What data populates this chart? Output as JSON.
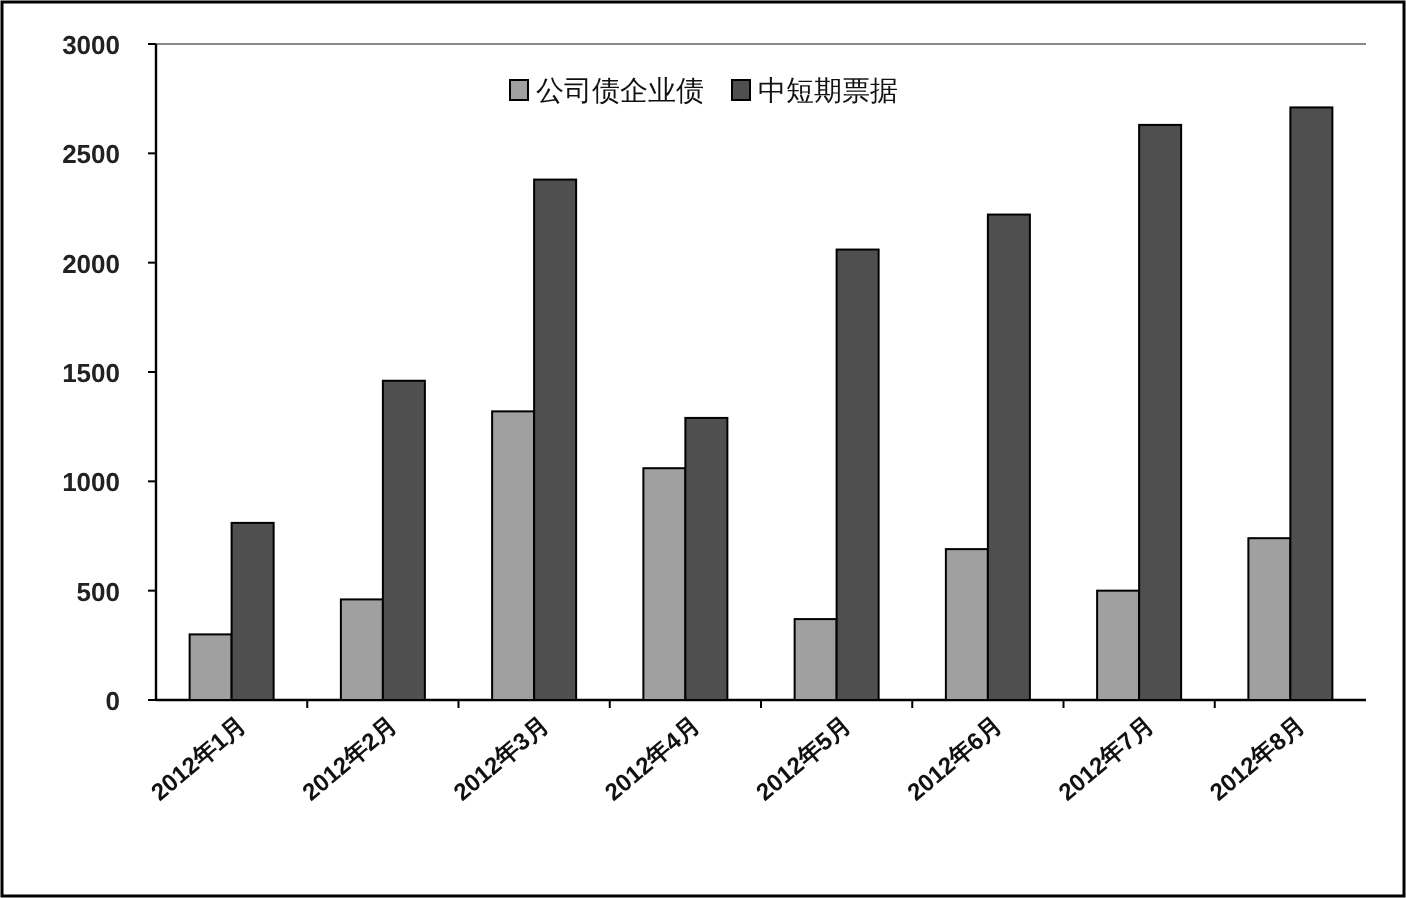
{
  "chart_data": {
    "type": "bar",
    "categories": [
      "2012年1月",
      "2012年2月",
      "2012年3月",
      "2012年4月",
      "2012年5月",
      "2012年6月",
      "2012年7月",
      "2012年8月"
    ],
    "series": [
      {
        "name": "公司债企业债",
        "color": "#a0a0a0",
        "values": [
          300,
          460,
          1320,
          1060,
          370,
          690,
          500,
          740
        ]
      },
      {
        "name": "中短期票据",
        "color": "#4f4f4f",
        "values": [
          810,
          1460,
          2380,
          1290,
          2060,
          2220,
          2630,
          2710
        ]
      }
    ],
    "ylim": [
      0,
      3000
    ],
    "yticks": [
      0,
      500,
      1000,
      1500,
      2000,
      2500,
      3000
    ],
    "legend": "top"
  }
}
